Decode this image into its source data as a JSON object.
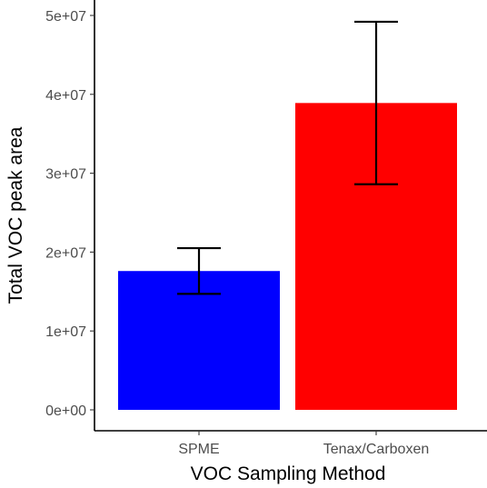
{
  "chart_data": {
    "type": "bar",
    "categories": [
      "SPME",
      "Tenax/Carboxen"
    ],
    "values": [
      17600000,
      38900000
    ],
    "error_low": [
      14700000,
      28600000
    ],
    "error_high": [
      20500000,
      49200000
    ],
    "colors": [
      "#0000ff",
      "#ff0000"
    ],
    "xlabel": "VOC Sampling Method",
    "ylabel": "Total VOC peak area",
    "ylim": [
      0,
      52500000
    ],
    "yticks": [
      0,
      10000000,
      20000000,
      30000000,
      40000000,
      50000000
    ],
    "ytick_labels": [
      "0e+00",
      "1e+07",
      "2e+07",
      "3e+07",
      "4e+07",
      "5e+07"
    ],
    "grid": false,
    "legend": "none"
  }
}
